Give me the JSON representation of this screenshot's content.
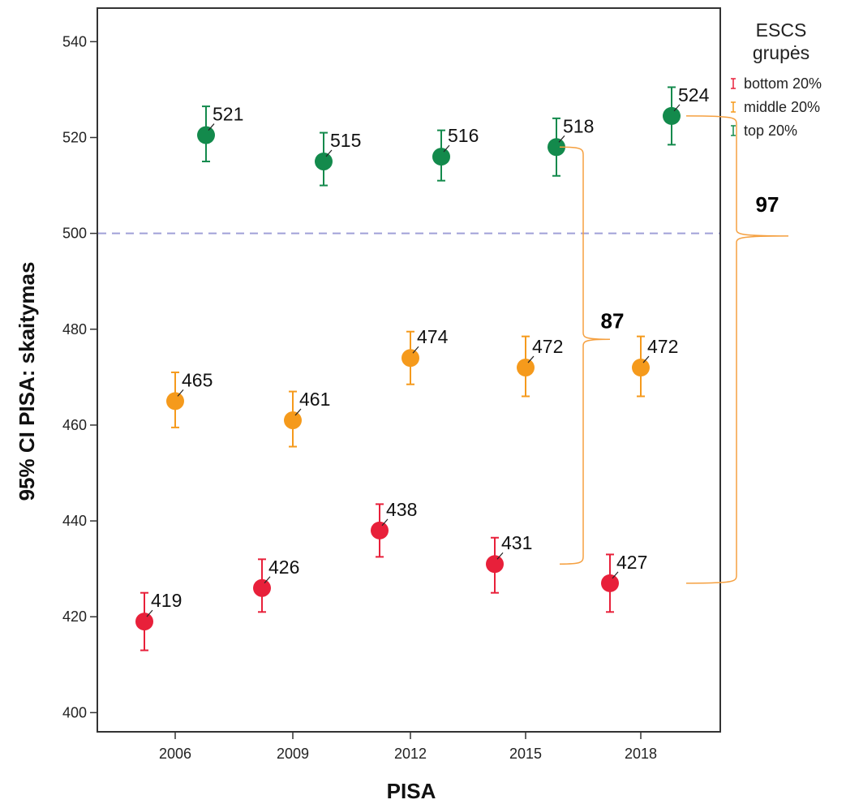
{
  "chart_data": {
    "type": "scatter",
    "title": "",
    "xlabel": "PISA",
    "ylabel": "95% CI PISA: skaitymas",
    "categories": [
      "2006",
      "2009",
      "2012",
      "2015",
      "2018"
    ],
    "y_ticks": [
      "400",
      "420",
      "440",
      "460",
      "480",
      "500",
      "520",
      "540"
    ],
    "ylim": [
      396,
      547
    ],
    "grid": false,
    "reference_line": {
      "y": 500,
      "style": "dashed",
      "color": "#a0a0d8"
    },
    "legend": {
      "title_line1": "ESCS",
      "title_line2": "grupės",
      "placement": "top-right"
    },
    "series": [
      {
        "name": "bottom 20%",
        "color": "#e8203a",
        "values": [
          419,
          426,
          438,
          431,
          427
        ],
        "ci_low": [
          413,
          421,
          432.5,
          425,
          421
        ],
        "ci_high": [
          425,
          432,
          443.5,
          436.5,
          433
        ],
        "labels": [
          "419",
          "426",
          "438",
          "431",
          "427"
        ]
      },
      {
        "name": "middle 20%",
        "color": "#f59a1c",
        "values": [
          465,
          461,
          474,
          472,
          472
        ],
        "ci_low": [
          459.5,
          455.5,
          468.5,
          466,
          466
        ],
        "ci_high": [
          471,
          467,
          479.5,
          478.5,
          478.5
        ],
        "labels": [
          "465",
          "461",
          "474",
          "472",
          "472"
        ]
      },
      {
        "name": "top 20%",
        "color": "#138a4c",
        "values": [
          520.5,
          515,
          516,
          518,
          524.5
        ],
        "ci_low": [
          515,
          510,
          511,
          512,
          518.5
        ],
        "ci_high": [
          526.5,
          521,
          521.5,
          524,
          530.5
        ],
        "labels": [
          "521",
          "515",
          "516",
          "518",
          "524"
        ]
      }
    ],
    "annotations": [
      {
        "text": "87",
        "from_year": "2015",
        "top": 518,
        "bottom": 431
      },
      {
        "text": "97",
        "from_year": "2018",
        "top": 524.5,
        "bottom": 427
      }
    ],
    "bracket_color": "#f5a040"
  }
}
